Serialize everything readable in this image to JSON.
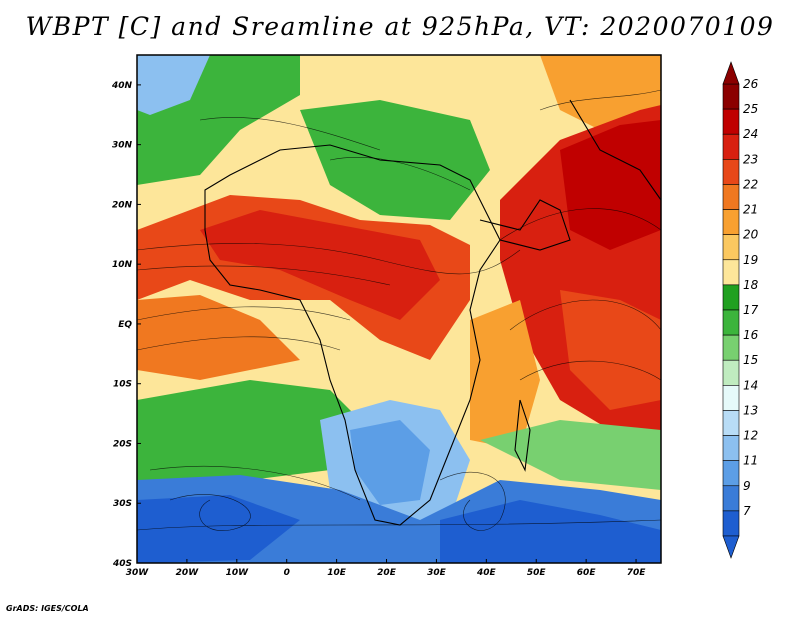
{
  "title": "WBPT [C] and Sreamline at 925hPa, VT: 2020070109",
  "credit": "GrADS: IGES/COLA",
  "map": {
    "lon_range": [
      -30,
      75
    ],
    "lat_range": [
      -40,
      45
    ],
    "lon_ticks": [
      "30W",
      "20W",
      "10W",
      "0",
      "10E",
      "20E",
      "30E",
      "40E",
      "50E",
      "60E",
      "70E"
    ],
    "lat_ticks": [
      "40N",
      "30N",
      "20N",
      "10N",
      "EQ",
      "10S",
      "20S",
      "30S",
      "40S"
    ]
  },
  "colorbar": {
    "labels": [
      "26",
      "25",
      "24",
      "23",
      "22",
      "21",
      "20",
      "19",
      "18",
      "17",
      "16",
      "15",
      "14",
      "13",
      "12",
      "11",
      "9",
      "7"
    ],
    "colors": [
      "#8b0000",
      "#c00000",
      "#d82010",
      "#e84818",
      "#f07820",
      "#f8a030",
      "#fbc860",
      "#fde69a",
      "#20a020",
      "#3cb43c",
      "#78d070",
      "#c0ecc0",
      "#e6fafa",
      "#b8dcf6",
      "#8cc0f0",
      "#5c9ee6",
      "#3a7cd8",
      "#1e5ed0"
    ]
  }
}
